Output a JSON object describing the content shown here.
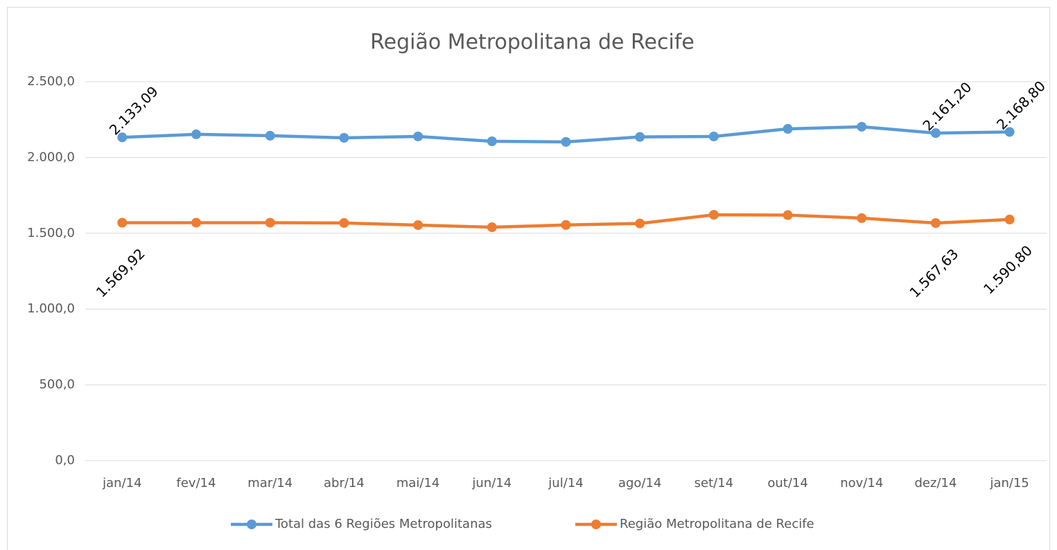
{
  "chart_data": {
    "type": "line",
    "title": "Região Metropolitana de Recife",
    "categories": [
      "jan/14",
      "fev/14",
      "mar/14",
      "abr/14",
      "mai/14",
      "jun/14",
      "jul/14",
      "ago/14",
      "set/14",
      "out/14",
      "nov/14",
      "dez/14",
      "jan/15"
    ],
    "series": [
      {
        "name": "Total das 6 Regiões Metropolitanas",
        "color": "#5b9bd5",
        "values": [
          2133.09,
          2153,
          2144,
          2130,
          2139,
          2107,
          2103,
          2136,
          2139,
          2189,
          2203,
          2161.2,
          2168.8
        ],
        "value_labels": [
          "2.133,09",
          null,
          null,
          null,
          null,
          null,
          null,
          null,
          null,
          null,
          null,
          "2.161,20",
          "2.168,80"
        ]
      },
      {
        "name": "Região Metropolitana de Recife",
        "color": "#ed7d31",
        "values": [
          1569.92,
          1570,
          1570,
          1568,
          1554,
          1540,
          1555,
          1565,
          1622,
          1620,
          1600,
          1567.63,
          1590.8
        ],
        "value_labels": [
          "1.569,92",
          null,
          null,
          null,
          null,
          null,
          null,
          null,
          null,
          null,
          null,
          "1.567,63",
          "1.590,80"
        ]
      }
    ],
    "ylim": [
      0,
      2500
    ],
    "yticks": [
      {
        "value": 0,
        "label": "0,0"
      },
      {
        "value": 500,
        "label": "500,0"
      },
      {
        "value": 1000,
        "label": "1.000,0"
      },
      {
        "value": 1500,
        "label": "1.500,0"
      },
      {
        "value": 2000,
        "label": "2.000,0"
      },
      {
        "value": 2500,
        "label": "2.500,0"
      }
    ],
    "grid": true,
    "legend": "bottom"
  }
}
